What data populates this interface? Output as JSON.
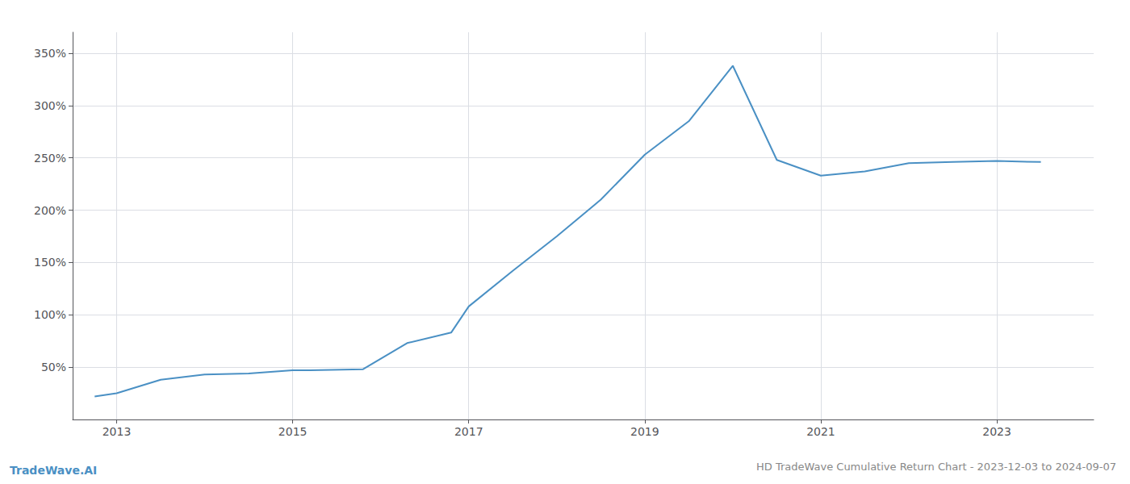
{
  "chart_data": {
    "type": "line",
    "title": "HD TradeWave Cumulative Return Chart - 2023-12-03 to 2024-09-07",
    "annotations": [
      "TradeWave.AI"
    ],
    "x": [
      2012.75,
      2013.0,
      2013.5,
      2014.0,
      2014.5,
      2015.0,
      2015.2,
      2015.8,
      2016.3,
      2016.8,
      2017.0,
      2017.5,
      2018.0,
      2018.5,
      2019.0,
      2019.5,
      2020.0,
      2020.5,
      2021.0,
      2021.5,
      2022.0,
      2022.5,
      2023.0,
      2023.5
    ],
    "values": [
      22,
      25,
      38,
      43,
      44,
      47,
      47,
      48,
      73,
      83,
      108,
      142,
      175,
      210,
      253,
      285,
      338,
      248,
      233,
      237,
      245,
      246,
      247,
      246
    ],
    "color": "#4a90c4",
    "xlim": [
      2012.5,
      2024.1
    ],
    "xticks": [
      2013,
      2015,
      2017,
      2019,
      2021,
      2023
    ],
    "ylim": [
      0,
      370
    ],
    "yticks": [
      {
        "value": 50,
        "label": "50%"
      },
      {
        "value": 100,
        "label": "100%"
      },
      {
        "value": 150,
        "label": "150%"
      },
      {
        "value": 200,
        "label": "200%"
      },
      {
        "value": 250,
        "label": "250%"
      },
      {
        "value": 300,
        "label": "300%"
      },
      {
        "value": 350,
        "label": "350%"
      }
    ],
    "grid": true
  }
}
